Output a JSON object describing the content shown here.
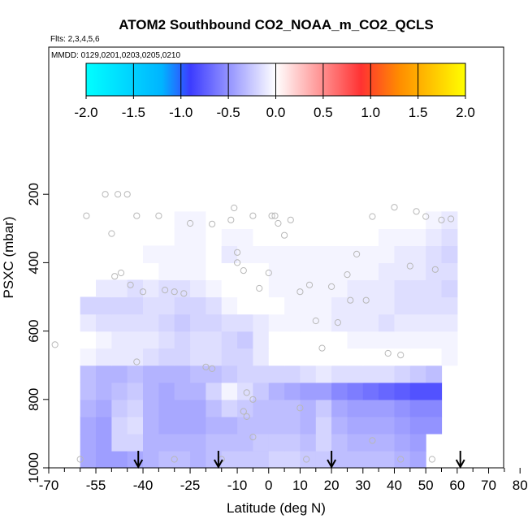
{
  "chart_data": {
    "type": "heatmap",
    "title": "ATOM2 Southbound CO2_NOAA_m_CO2_QCLS",
    "subtitle_flights": "Flts: 2,3,4,5,6",
    "subtitle_dates": "MMDD: 0129,0201,0203,0205,0210",
    "xlabel": "Latitude (deg N)",
    "ylabel": "PSXC (mbar)",
    "xlim": [
      -70,
      85
    ],
    "ylim": [
      1000,
      150
    ],
    "x_ticks": [
      -70,
      -55,
      -40,
      -25,
      -10,
      0,
      10,
      20,
      30,
      40,
      50,
      60,
      70,
      80
    ],
    "x_minor_ticks": [
      -65,
      -60,
      -50,
      -45,
      -35,
      -30,
      -20,
      -15,
      -5,
      5,
      15,
      25,
      35,
      45,
      55,
      65,
      75
    ],
    "y_ticks": [
      200,
      400,
      600,
      800,
      1000
    ],
    "colorbar": {
      "range": [
        -2.0,
        2.0
      ],
      "tick_labels": [
        "-2.0",
        "-1.5",
        "-1.0",
        "-0.5",
        "0.0",
        "0.5",
        "1.0",
        "1.5",
        "2.0"
      ],
      "tick_values": [
        -2.0,
        -1.5,
        -1.0,
        -0.5,
        0.0,
        0.5,
        1.0,
        1.5,
        2.0
      ],
      "colors": [
        "#00ffff",
        "#00b4ff",
        "#3c3cff",
        "#ffffff",
        "#ff3232",
        "#ff8c00",
        "#ffff00"
      ],
      "color_stops": [
        -2.0,
        -1.2,
        -0.9,
        0.0,
        0.9,
        1.3,
        2.0
      ]
    },
    "lat_bands": [
      -57.5,
      -52.5,
      -47.5,
      -42.5,
      -37.5,
      -32.5,
      -27.5,
      -22.5,
      -17.5,
      -12.5,
      -7.5,
      -2.5,
      2.5,
      7.5,
      12.5,
      17.5,
      22.5,
      27.5,
      32.5,
      37.5,
      42.5,
      47.5,
      52.5,
      57.5
    ],
    "pressure_levels": [
      975,
      925,
      875,
      825,
      775,
      725,
      675,
      625,
      575,
      525,
      475,
      425,
      375,
      325,
      275
    ],
    "values_by_level": [
      [
        -0.4,
        -0.45,
        -0.45,
        -0.4,
        -0.35,
        -0.3,
        -0.3,
        -0.35,
        -0.3,
        -0.25,
        -0.25,
        -0.25,
        -0.2,
        -0.2,
        -0.25,
        -0.25,
        -0.3,
        -0.3,
        -0.3,
        -0.3,
        -0.35,
        -0.4,
        null,
        null
      ],
      [
        -0.4,
        -0.45,
        -0.2,
        -0.2,
        -0.35,
        -0.35,
        -0.35,
        -0.35,
        -0.3,
        -0.3,
        -0.3,
        -0.25,
        -0.25,
        -0.25,
        -0.3,
        -0.2,
        -0.3,
        -0.35,
        -0.35,
        -0.35,
        -0.4,
        -0.45,
        null,
        null
      ],
      [
        -0.4,
        -0.45,
        -0.2,
        -0.15,
        -0.35,
        -0.4,
        -0.4,
        -0.4,
        -0.35,
        -0.35,
        -0.3,
        -0.3,
        -0.3,
        -0.3,
        -0.35,
        -0.2,
        -0.35,
        -0.4,
        -0.4,
        -0.4,
        -0.45,
        -0.5,
        -0.5,
        null
      ],
      [
        -0.35,
        -0.4,
        -0.25,
        -0.2,
        -0.35,
        -0.4,
        -0.4,
        -0.4,
        -0.3,
        -0.2,
        -0.25,
        -0.3,
        -0.3,
        -0.3,
        -0.35,
        -0.25,
        -0.4,
        -0.45,
        -0.45,
        -0.45,
        -0.5,
        -0.55,
        -0.55,
        null
      ],
      [
        -0.3,
        -0.35,
        -0.3,
        -0.25,
        -0.35,
        -0.4,
        -0.35,
        -0.35,
        -0.2,
        -0.05,
        -0.15,
        -0.25,
        -0.35,
        -0.4,
        -0.45,
        -0.45,
        -0.55,
        -0.6,
        -0.65,
        -0.7,
        -0.75,
        -0.8,
        -0.8,
        null
      ],
      [
        -0.3,
        -0.35,
        -0.35,
        -0.3,
        -0.35,
        -0.35,
        -0.35,
        -0.3,
        -0.3,
        -0.25,
        -0.2,
        -0.2,
        -0.2,
        -0.2,
        -0.15,
        -0.1,
        -0.15,
        -0.15,
        -0.15,
        -0.15,
        -0.2,
        -0.25,
        -0.3,
        null
      ],
      [
        -0.05,
        -0.1,
        -0.1,
        -0.1,
        -0.15,
        -0.2,
        -0.2,
        -0.15,
        -0.15,
        -0.2,
        -0.2,
        -0.1,
        0.0,
        0.0,
        0.0,
        0.0,
        0.0,
        0.0,
        0.0,
        0.0,
        0.0,
        0.0,
        0.0,
        -0.05
      ],
      [
        0.0,
        -0.05,
        -0.1,
        -0.1,
        -0.1,
        -0.15,
        -0.2,
        -0.15,
        -0.15,
        -0.2,
        -0.25,
        -0.1,
        0.0,
        0.0,
        0.0,
        0.0,
        0.0,
        -0.05,
        -0.05,
        -0.05,
        -0.05,
        -0.05,
        -0.05,
        -0.05
      ],
      [
        -0.1,
        -0.15,
        -0.15,
        -0.15,
        -0.15,
        -0.2,
        -0.25,
        -0.2,
        -0.2,
        -0.15,
        -0.15,
        -0.1,
        -0.05,
        -0.05,
        -0.05,
        -0.05,
        -0.1,
        -0.1,
        -0.1,
        -0.15,
        -0.1,
        -0.1,
        -0.1,
        -0.1
      ],
      [
        -0.2,
        -0.2,
        -0.2,
        -0.2,
        -0.15,
        -0.15,
        -0.2,
        -0.2,
        -0.15,
        -0.05,
        0.0,
        0.0,
        0.0,
        -0.05,
        -0.05,
        -0.05,
        -0.1,
        -0.1,
        -0.1,
        -0.1,
        -0.15,
        -0.15,
        -0.15,
        -0.15
      ],
      [
        null,
        -0.1,
        -0.1,
        -0.15,
        -0.1,
        -0.15,
        -0.15,
        -0.1,
        -0.05,
        0.0,
        0.0,
        0.0,
        -0.05,
        -0.05,
        -0.05,
        -0.05,
        -0.05,
        -0.1,
        -0.1,
        -0.1,
        -0.15,
        -0.15,
        -0.15,
        -0.2
      ],
      [
        null,
        null,
        null,
        null,
        null,
        -0.05,
        -0.05,
        -0.05,
        0.0,
        0.0,
        0.0,
        0.0,
        -0.05,
        -0.05,
        -0.05,
        -0.05,
        -0.05,
        -0.05,
        -0.05,
        -0.1,
        -0.1,
        -0.1,
        -0.15,
        -0.15
      ],
      [
        null,
        null,
        null,
        null,
        -0.05,
        -0.05,
        -0.05,
        -0.05,
        0.0,
        -0.1,
        -0.05,
        -0.05,
        -0.05,
        -0.05,
        -0.05,
        -0.05,
        -0.05,
        -0.05,
        -0.05,
        -0.05,
        -0.1,
        -0.1,
        -0.15,
        -0.2
      ],
      [
        null,
        null,
        null,
        null,
        null,
        null,
        -0.05,
        -0.05,
        0.0,
        -0.05,
        -0.05,
        0.0,
        0.0,
        0.0,
        0.0,
        0.0,
        0.0,
        0.0,
        0.0,
        -0.05,
        -0.05,
        -0.05,
        -0.1,
        -0.15
      ],
      [
        null,
        null,
        null,
        null,
        null,
        null,
        -0.05,
        -0.05,
        0.0,
        0.0,
        0.0,
        0.0,
        0.0,
        0.0,
        0.0,
        0.0,
        0.0,
        0.0,
        0.0,
        0.0,
        0.0,
        0.0,
        -0.05,
        -0.1
      ]
    ],
    "observation_circles": [
      [
        -60,
        975
      ],
      [
        -68,
        640
      ],
      [
        -58,
        263
      ],
      [
        -52,
        200
      ],
      [
        -48,
        200
      ],
      [
        -45,
        200
      ],
      [
        -50,
        315
      ],
      [
        -49,
        440
      ],
      [
        -47,
        430
      ],
      [
        -44,
        465
      ],
      [
        -42,
        263
      ],
      [
        -40,
        485
      ],
      [
        -35,
        263
      ],
      [
        -33,
        480
      ],
      [
        -30,
        485
      ],
      [
        -27,
        490
      ],
      [
        -25,
        285
      ],
      [
        -18,
        287
      ],
      [
        -12,
        275
      ],
      [
        -11,
        240
      ],
      [
        -10,
        370
      ],
      [
        -10,
        400
      ],
      [
        -8,
        423
      ],
      [
        -5,
        263
      ],
      [
        -3,
        475
      ],
      [
        0,
        430
      ],
      [
        1,
        263
      ],
      [
        2,
        263
      ],
      [
        3,
        285
      ],
      [
        5,
        320
      ],
      [
        7,
        275
      ],
      [
        10,
        485
      ],
      [
        13,
        465
      ],
      [
        15,
        570
      ],
      [
        17,
        650
      ],
      [
        20,
        470
      ],
      [
        22,
        575
      ],
      [
        25,
        435
      ],
      [
        26,
        510
      ],
      [
        28,
        375
      ],
      [
        31,
        510
      ],
      [
        33,
        265
      ],
      [
        38,
        665
      ],
      [
        40,
        238
      ],
      [
        42,
        670
      ],
      [
        45,
        410
      ],
      [
        47,
        250
      ],
      [
        50,
        265
      ],
      [
        53,
        420
      ],
      [
        55,
        275
      ],
      [
        58,
        272
      ],
      [
        -42,
        690
      ],
      [
        -20,
        705
      ],
      [
        -18,
        710
      ],
      [
        -7,
        780
      ],
      [
        -5,
        800
      ],
      [
        -8,
        835
      ],
      [
        -7,
        850
      ],
      [
        10,
        825
      ],
      [
        12,
        975
      ],
      [
        33,
        920
      ],
      [
        42,
        975
      ],
      [
        52,
        975
      ],
      [
        -30,
        975
      ],
      [
        -15,
        975
      ],
      [
        -5,
        910
      ]
    ],
    "arrow_latitudes": [
      -41.5,
      -16,
      20,
      61
    ]
  }
}
